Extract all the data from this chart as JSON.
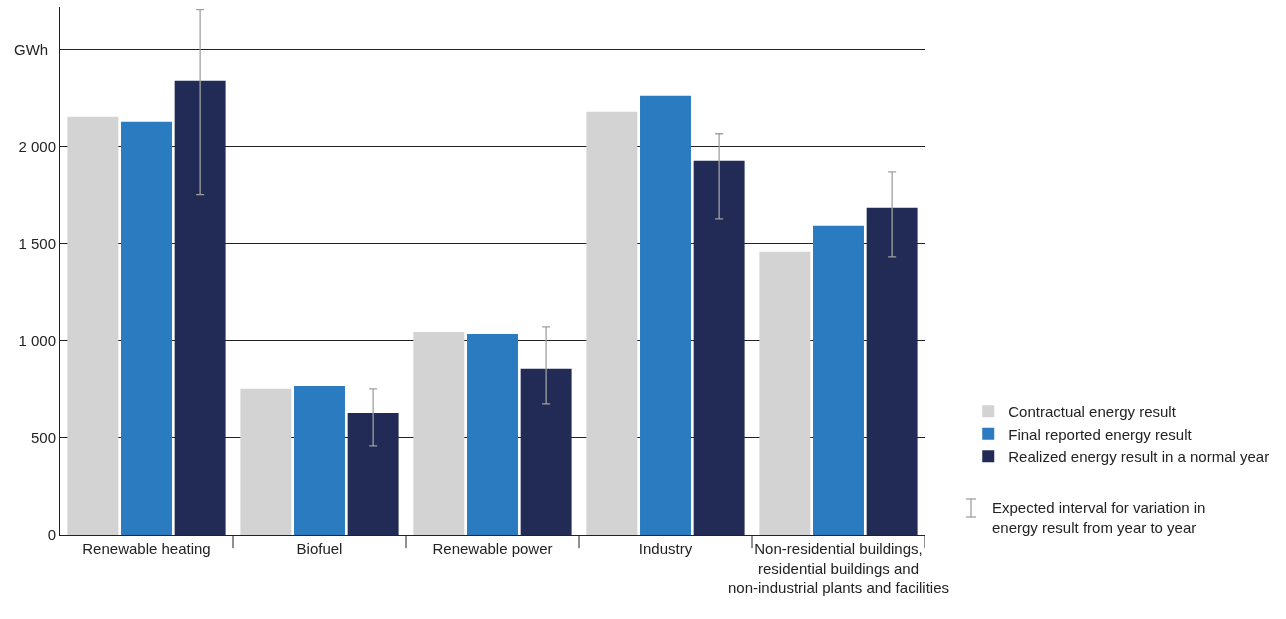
{
  "chart_data": {
    "type": "bar",
    "categories": [
      "Renewable heating",
      "Biofuel",
      "Renewable power",
      "Industry",
      "Non-residential buildings,\nresidential buildings and\nnon-industrial plants and facilities"
    ],
    "ylabel": "GWh",
    "series": [
      {
        "name": "Contractual energy result",
        "color": "#d3d3d3",
        "values": [
          2155,
          753,
          1046,
          2180,
          1459
        ]
      },
      {
        "name": "Final reported energy result",
        "color": "#2a7bbf",
        "values": [
          2129,
          768,
          1036,
          2263,
          1593
        ]
      },
      {
        "name": "Realized energy result in a normal year",
        "color": "#222b55",
        "values": [
          2340,
          629,
          856,
          1928,
          1686
        ],
        "errors": [
          [
            1753,
            2706
          ],
          [
            459,
            753
          ],
          [
            675,
            1072
          ],
          [
            1629,
            2067
          ],
          [
            1433,
            1871
          ]
        ]
      }
    ],
    "annotations": [
      "Expected interval for variation in\nenergy result from year to year"
    ],
    "ylim": [
      0,
      2720
    ],
    "yticks": [
      0,
      500,
      {
        "value": 1000,
        "label": "1 000"
      },
      {
        "value": 1500,
        "label": "1 500"
      },
      {
        "value": 2000,
        "label": "2 000"
      },
      {
        "value": 2500,
        "label": null
      }
    ],
    "grid": "y",
    "legend": "bottom right"
  }
}
